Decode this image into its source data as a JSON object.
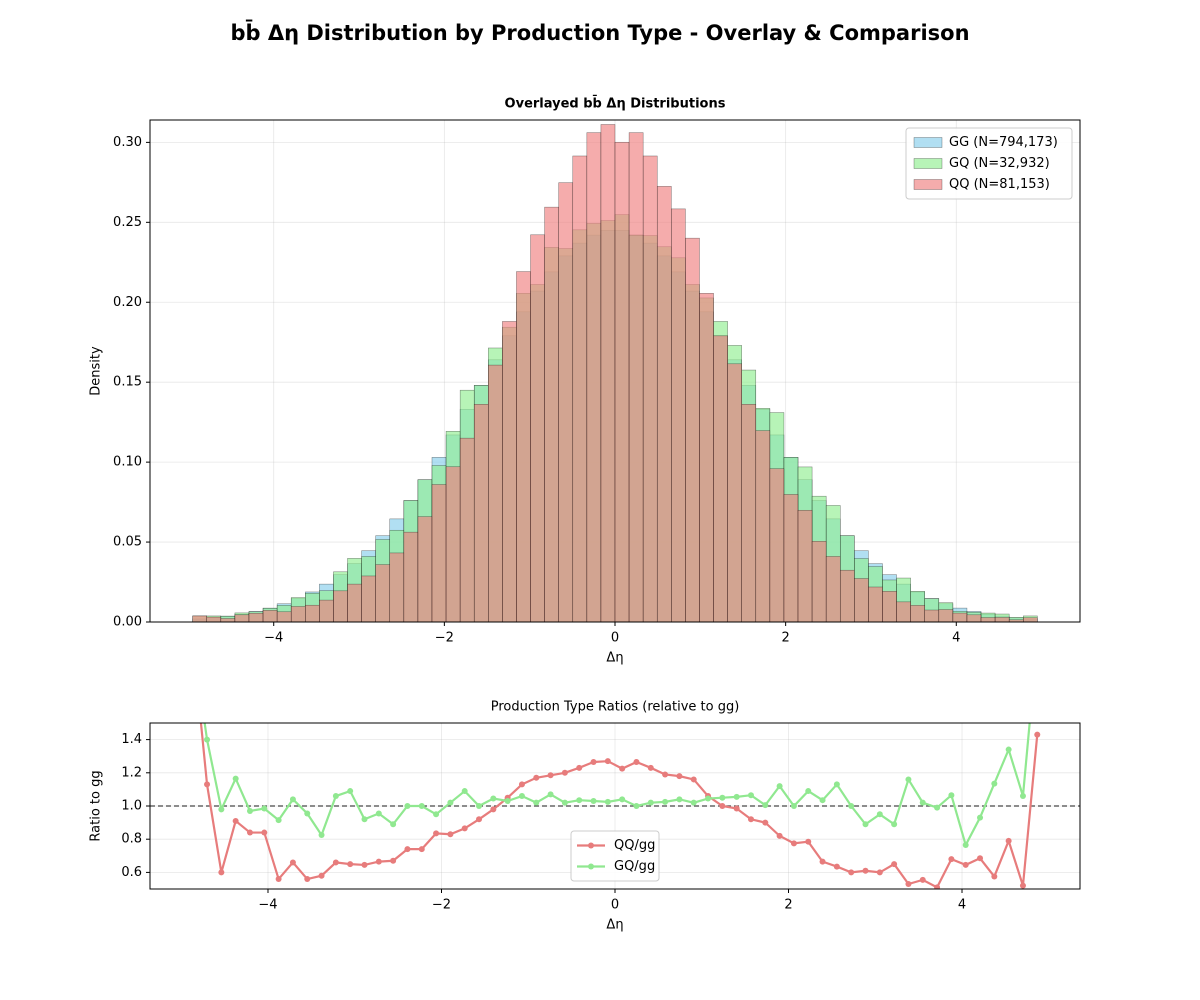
{
  "title": "bb̄ Δη Distribution by Production Type - Overlay & Comparison",
  "chart_data": [
    {
      "type": "histogram",
      "title": "Overlayed bb̄ Δη Distributions",
      "xlabel": "Δη",
      "ylabel": "Density",
      "bins": [
        -4.95,
        -4.785,
        -4.62,
        -4.455,
        -4.29,
        -4.125,
        -3.96,
        -3.795,
        -3.63,
        -3.465,
        -3.3,
        -3.135,
        -2.97,
        -2.805,
        -2.64,
        -2.475,
        -2.31,
        -2.145,
        -1.98,
        -1.815,
        -1.65,
        -1.485,
        -1.32,
        -1.155,
        -0.99,
        -0.825,
        -0.66,
        -0.495,
        -0.33,
        -0.165,
        0,
        0.165,
        0.33,
        0.495,
        0.66,
        0.825,
        0.99,
        1.155,
        1.32,
        1.485,
        1.65,
        1.815,
        1.98,
        2.145,
        2.31,
        2.475,
        2.64,
        2.805,
        2.97,
        3.135,
        3.3,
        3.465,
        3.63,
        3.795,
        3.96,
        4.125,
        4.29,
        4.455,
        4.62,
        4.785,
        4.95
      ],
      "series": [
        {
          "name": "GG (N=794,173)",
          "color": "#87ceeb",
          "values": [
            0.0019,
            0.0027,
            0.0037,
            0.0049,
            0.0066,
            0.0087,
            0.0114,
            0.0147,
            0.0188,
            0.0237,
            0.0296,
            0.0365,
            0.0446,
            0.054,
            0.0645,
            0.076,
            0.089,
            0.103,
            0.117,
            0.133,
            0.148,
            0.164,
            0.179,
            0.194,
            0.207,
            0.219,
            0.229,
            0.237,
            0.242,
            0.245,
            0.245,
            0.242,
            0.237,
            0.229,
            0.219,
            0.207,
            0.194,
            0.179,
            0.164,
            0.148,
            0.133,
            0.117,
            0.103,
            0.089,
            0.076,
            0.0645,
            0.054,
            0.0446,
            0.0365,
            0.0296,
            0.0237,
            0.0188,
            0.0147,
            0.0114,
            0.0087,
            0.0066,
            0.0049,
            0.0037,
            0.0027,
            0.0019
          ]
        },
        {
          "name": "GQ (N=32,932)",
          "color": "#90ee90",
          "values": [
            0.0038,
            0.0038,
            0.0036,
            0.0057,
            0.0064,
            0.0086,
            0.0104,
            0.0153,
            0.018,
            0.0196,
            0.0314,
            0.0398,
            0.041,
            0.0516,
            0.0574,
            0.076,
            0.089,
            0.0979,
            0.1193,
            0.145,
            0.148,
            0.1714,
            0.1844,
            0.2056,
            0.2111,
            0.2343,
            0.2336,
            0.2453,
            0.2493,
            0.2511,
            0.2548,
            0.242,
            0.2417,
            0.2347,
            0.2278,
            0.2111,
            0.2027,
            0.188,
            0.173,
            0.1576,
            0.1337,
            0.131,
            0.103,
            0.097,
            0.0787,
            0.0729,
            0.054,
            0.0397,
            0.0347,
            0.0263,
            0.0275,
            0.0192,
            0.0146,
            0.0121,
            0.0067,
            0.0061,
            0.0056,
            0.005,
            0.0029,
            0.0038
          ]
        },
        {
          "name": "QQ (N=81,153)",
          "color": "#f08080",
          "values": [
            0.0038,
            0.0031,
            0.0022,
            0.0045,
            0.0055,
            0.0073,
            0.0064,
            0.0097,
            0.0105,
            0.0137,
            0.0195,
            0.0237,
            0.0288,
            0.0359,
            0.0432,
            0.0562,
            0.0659,
            0.086,
            0.0971,
            0.115,
            0.1362,
            0.1607,
            0.188,
            0.2192,
            0.2422,
            0.2595,
            0.2748,
            0.2915,
            0.3061,
            0.3112,
            0.3001,
            0.3061,
            0.2915,
            0.2725,
            0.2584,
            0.2401,
            0.2056,
            0.179,
            0.1615,
            0.1362,
            0.1197,
            0.0959,
            0.0798,
            0.0699,
            0.0505,
            0.041,
            0.0324,
            0.0272,
            0.0219,
            0.0192,
            0.0126,
            0.0104,
            0.0075,
            0.0078,
            0.0056,
            0.0045,
            0.0028,
            0.0029,
            0.0014,
            0.0027
          ]
        }
      ],
      "xlim": [
        -5.45,
        5.45
      ],
      "ylim": [
        0,
        0.314
      ],
      "xticks": [
        {
          "value": -4,
          "label": "−4"
        },
        {
          "value": -2,
          "label": "−2"
        },
        0,
        2,
        4
      ],
      "yticks": [
        {
          "value": 0,
          "label": "0.00"
        },
        {
          "value": 0.05,
          "label": "0.05"
        },
        {
          "value": 0.1,
          "label": "0.10"
        },
        {
          "value": 0.15,
          "label": "0.15"
        },
        {
          "value": 0.2,
          "label": "0.20"
        },
        {
          "value": 0.25,
          "label": "0.25"
        },
        {
          "value": 0.3,
          "label": "0.30"
        }
      ],
      "grid": true,
      "legend": "upper right"
    },
    {
      "type": "line",
      "title": "Production Type Ratios (relative to gg)",
      "xlabel": "Δη",
      "ylabel": "Ratio to gg",
      "x": [
        -4.8675,
        -4.7025,
        -4.5375,
        -4.3725,
        -4.2075,
        -4.0425,
        -3.8775,
        -3.7125,
        -3.5475,
        -3.3825,
        -3.2175,
        -3.0525,
        -2.8875,
        -2.7225,
        -2.5575,
        -2.3925,
        -2.2275,
        -2.0625,
        -1.8975,
        -1.7325,
        -1.5675,
        -1.4025,
        -1.2375,
        -1.0725,
        -0.9075,
        -0.7425,
        -0.5775,
        -0.4125,
        -0.2475,
        -0.0825,
        0.0825,
        0.2475,
        0.4125,
        0.5775,
        0.7425,
        0.9075,
        1.0725,
        1.2375,
        1.4025,
        1.5675,
        1.7325,
        1.8975,
        2.0625,
        2.2275,
        2.3925,
        2.5575,
        2.7225,
        2.8875,
        3.0525,
        3.2175,
        3.3825,
        3.5475,
        3.7125,
        3.8775,
        4.0425,
        4.2075,
        4.3725,
        4.5375,
        4.7025,
        4.8675
      ],
      "series": [
        {
          "name": "QQ/gg",
          "color": "#e77c7c",
          "values": [
            2.0,
            1.13,
            0.6,
            0.91,
            0.84,
            0.84,
            0.56,
            0.66,
            0.56,
            0.58,
            0.66,
            0.65,
            0.645,
            0.665,
            0.67,
            0.74,
            0.74,
            0.835,
            0.83,
            0.865,
            0.92,
            0.98,
            1.05,
            1.13,
            1.17,
            1.185,
            1.2,
            1.23,
            1.265,
            1.27,
            1.225,
            1.265,
            1.23,
            1.19,
            1.18,
            1.16,
            1.06,
            1.0,
            0.985,
            0.92,
            0.9,
            0.82,
            0.775,
            0.785,
            0.665,
            0.635,
            0.6,
            0.61,
            0.6,
            0.65,
            0.53,
            0.555,
            0.51,
            0.68,
            0.645,
            0.685,
            0.575,
            0.79,
            0.52,
            1.43
          ]
        },
        {
          "name": "GQ/gg",
          "color": "#90e890",
          "values": [
            2.0,
            1.4,
            0.98,
            1.165,
            0.97,
            0.985,
            0.915,
            1.04,
            0.955,
            0.825,
            1.06,
            1.09,
            0.92,
            0.955,
            0.89,
            1.0,
            1.0,
            0.95,
            1.02,
            1.09,
            1.0,
            1.045,
            1.03,
            1.06,
            1.02,
            1.07,
            1.02,
            1.035,
            1.03,
            1.025,
            1.04,
            1.0,
            1.02,
            1.025,
            1.04,
            1.02,
            1.045,
            1.05,
            1.055,
            1.065,
            1.005,
            1.12,
            1.0,
            1.09,
            1.035,
            1.13,
            1.0,
            0.89,
            0.95,
            0.89,
            1.16,
            1.02,
            0.99,
            1.065,
            0.765,
            0.93,
            1.135,
            1.34,
            1.06,
            2.0
          ]
        }
      ],
      "hline": 1,
      "xlim": [
        -5.36,
        5.36
      ],
      "ylim": [
        0.5,
        1.5
      ],
      "xticks": [
        {
          "value": -4,
          "label": "−4"
        },
        {
          "value": -2,
          "label": "−2"
        },
        0,
        2,
        4
      ],
      "yticks": [
        0.6,
        0.8,
        {
          "value": 1,
          "label": "1.0"
        },
        1.2,
        1.4
      ],
      "grid": true,
      "legend": "lower center"
    }
  ]
}
